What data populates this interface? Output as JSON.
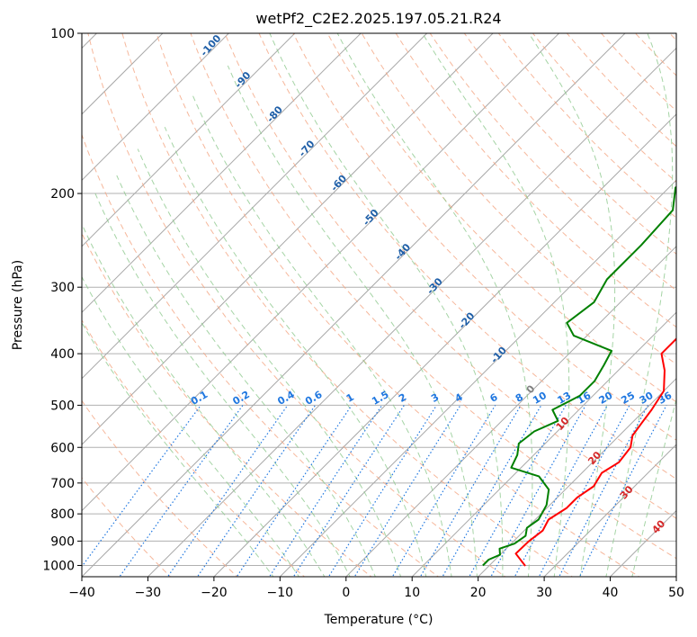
{
  "chart_data": {
    "type": "line",
    "title": "wetPf2_C2E2.2025.197.05.21.R24",
    "xlabel": "Temperature (°C)",
    "ylabel": "Pressure (hPa)",
    "xlim": [
      -40,
      50
    ],
    "ylim": [
      1050,
      100
    ],
    "y_scale": "log",
    "x_ticks": [
      -40,
      -30,
      -20,
      -10,
      0,
      10,
      20,
      30,
      40,
      50
    ],
    "x_tick_labels": [
      "−40",
      "−30",
      "−20",
      "−10",
      "0",
      "10",
      "20",
      "30",
      "40",
      "50"
    ],
    "y_ticks": [
      1000,
      900,
      800,
      700,
      600,
      500,
      400,
      300,
      200,
      100
    ],
    "y_tick_labels": [
      "1000",
      "900",
      "800",
      "700",
      "600",
      "500",
      "400",
      "300",
      "200",
      "100"
    ],
    "grid": true,
    "series": [
      {
        "color": "#ff0000",
        "points": [
          [
            25.5,
            1002
          ],
          [
            22.2,
            950
          ],
          [
            22.3,
            900
          ],
          [
            22.8,
            860
          ],
          [
            22.0,
            820
          ],
          [
            23.0,
            780
          ],
          [
            23.0,
            745
          ],
          [
            23.8,
            710
          ],
          [
            23.0,
            670
          ],
          [
            24.0,
            640
          ],
          [
            23.5,
            600
          ],
          [
            22.0,
            570
          ],
          [
            21.5,
            540
          ],
          [
            21.0,
            510
          ],
          [
            20.0,
            470
          ],
          [
            17.0,
            430
          ],
          [
            14.0,
            400
          ],
          [
            14.0,
            370
          ],
          [
            12.5,
            340
          ],
          [
            10.0,
            300
          ],
          [
            6.0,
            260
          ],
          [
            3.0,
            225
          ],
          [
            1.5,
            200
          ],
          [
            1.0,
            180
          ],
          [
            1.5,
            160
          ],
          [
            2.5,
            140
          ],
          [
            3.0,
            125
          ],
          [
            2.5,
            115
          ],
          [
            3.0,
            105
          ],
          [
            5.0,
            100
          ]
        ]
      },
      {
        "color": "#008000",
        "points": [
          [
            19.0,
            1000
          ],
          [
            19.0,
            975
          ],
          [
            20.0,
            955
          ],
          [
            19.0,
            930
          ],
          [
            20.5,
            910
          ],
          [
            21.0,
            880
          ],
          [
            20.0,
            850
          ],
          [
            20.5,
            820
          ],
          [
            19.5,
            770
          ],
          [
            17.5,
            720
          ],
          [
            14.0,
            680
          ],
          [
            8.5,
            655
          ],
          [
            7.5,
            620
          ],
          [
            6.0,
            590
          ],
          [
            6.5,
            560
          ],
          [
            8.5,
            535
          ],
          [
            6.0,
            510
          ],
          [
            8.0,
            480
          ],
          [
            8.0,
            450
          ],
          [
            7.0,
            420
          ],
          [
            6.0,
            395
          ],
          [
            -2.0,
            370
          ],
          [
            -5.0,
            350
          ],
          [
            -4.0,
            320
          ],
          [
            -5.5,
            290
          ],
          [
            -5.5,
            250
          ],
          [
            -6.0,
            215
          ],
          [
            -9.0,
            195
          ],
          [
            -7.5,
            180
          ],
          [
            -7.0,
            160
          ],
          [
            -5.5,
            140
          ],
          [
            -5.0,
            125
          ],
          [
            -3.0,
            115
          ],
          [
            0.0,
            108
          ],
          [
            2.0,
            100
          ]
        ]
      }
    ],
    "dry_adiabat_labels": [
      "-100",
      "-90",
      "-80",
      "-70",
      "-60",
      "-50",
      "-40",
      "-30",
      "-20",
      "-10",
      "0",
      "10",
      "20",
      "30",
      "40"
    ],
    "mixing_ratio_labels": [
      "0.1",
      "0.2",
      "0.4",
      "0.6",
      "1",
      "1.5",
      "2",
      "3",
      "4",
      "6",
      "8",
      "10",
      "13",
      "16",
      "20",
      "25",
      "30",
      "36"
    ],
    "colors": {
      "temperature": "#ff0000",
      "dewpoint": "#008000",
      "dry_adiabat": "#f4a582",
      "moist_adiabat": "#8fc98f",
      "mixing_ratio": "#1f77e0",
      "isotherm": "#808080",
      "dry_adiabat_label_cold": "#1f5fa8",
      "dry_adiabat_label_warm": "#d62728",
      "zero_label": "#808080"
    }
  }
}
